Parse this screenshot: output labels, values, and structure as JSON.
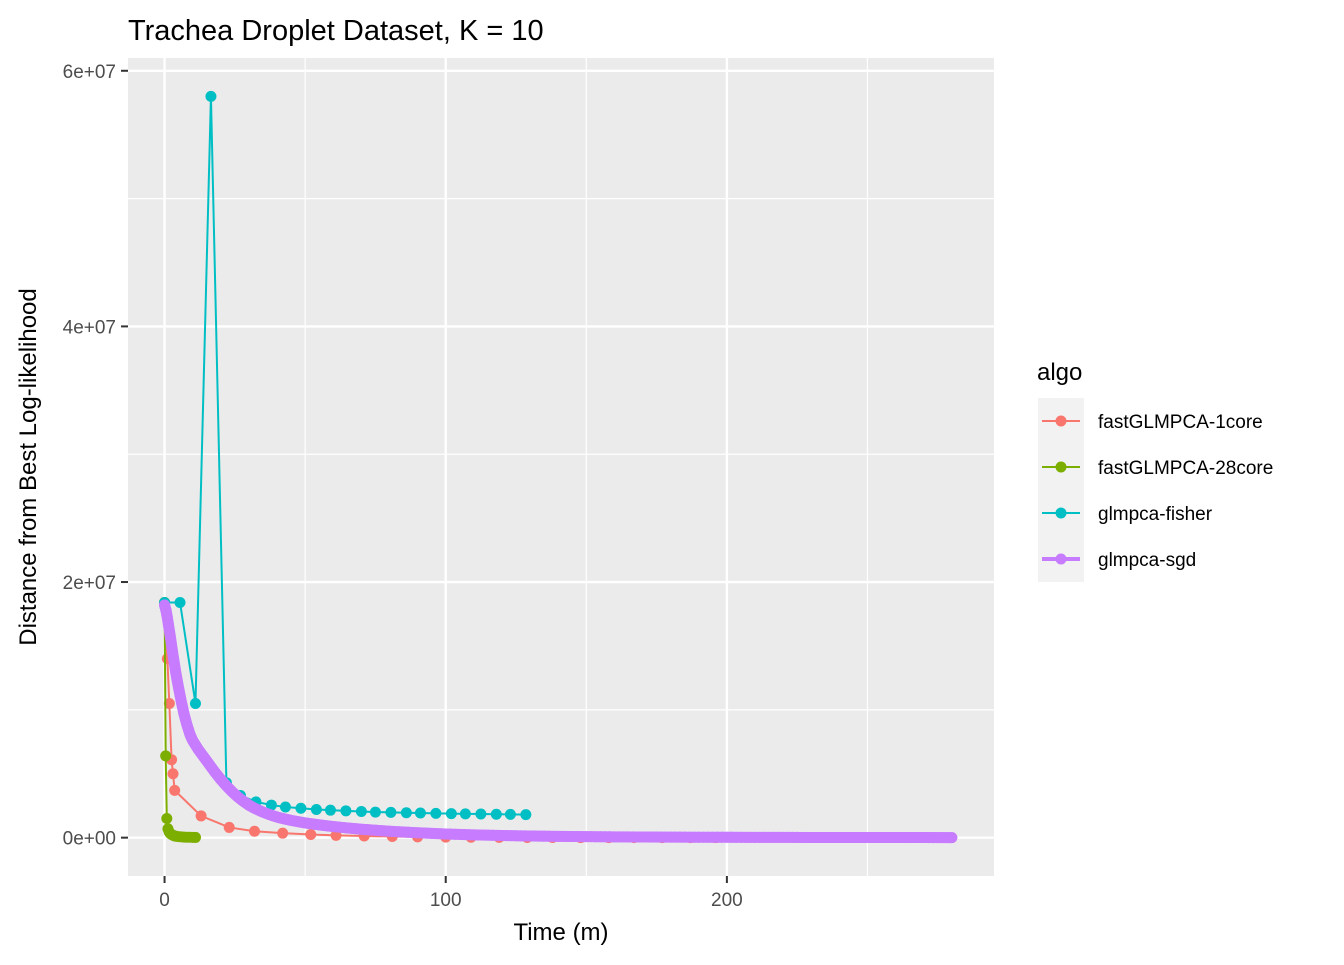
{
  "chart_data": {
    "type": "line",
    "title": "Trachea Droplet Dataset, K = 10",
    "xlabel": "Time (m)",
    "ylabel": "Distance from Best Log-likelihood",
    "xlim": [
      -13,
      295
    ],
    "ylim": [
      -3000000,
      61000000
    ],
    "x_ticks": [
      0,
      100,
      200
    ],
    "x_tick_labels": [
      "0",
      "100",
      "200"
    ],
    "y_ticks": [
      0,
      20000000,
      40000000,
      60000000
    ],
    "y_tick_labels": [
      "0e+00",
      "2e+07",
      "4e+07",
      "6e+07"
    ],
    "grid": true,
    "legend_title": "algo",
    "legend_position": "right",
    "series": [
      {
        "name": "fastGLMPCA-1core",
        "color": "#F8766D",
        "style": "line-points",
        "x": [
          0,
          1,
          1.7,
          2.5,
          3,
          3.6,
          13,
          23,
          32,
          42,
          52,
          61,
          71,
          81,
          90,
          100,
          109,
          119,
          129,
          138,
          148,
          158,
          167,
          177,
          187,
          196
        ],
        "y": [
          18400000,
          14000000,
          10500000,
          6100000,
          5000000,
          3700000,
          1700000,
          800000,
          500000,
          350000,
          250000,
          180000,
          130000,
          90000,
          60000,
          40000,
          30000,
          20000,
          15000,
          10000,
          8000,
          6000,
          4000,
          3000,
          2000,
          1000
        ]
      },
      {
        "name": "fastGLMPCA-28core",
        "color": "#7CAE00",
        "style": "line-points",
        "x": [
          0,
          0.4,
          0.8,
          1.2,
          1.6,
          2.0,
          2.5,
          3.0,
          3.5,
          4.0,
          5.0,
          6.0,
          7.0,
          8.0,
          9.0,
          10.0,
          11.0
        ],
        "y": [
          18400000,
          6400000,
          1500000,
          700000,
          450000,
          330000,
          250000,
          190000,
          140000,
          110000,
          80000,
          60000,
          45000,
          35000,
          28000,
          22000,
          18000
        ]
      },
      {
        "name": "glmpca-fisher",
        "color": "#00BFC4",
        "style": "line-points",
        "x": [
          0,
          5.5,
          11,
          16.5,
          22,
          27,
          32.5,
          38,
          43,
          48.5,
          54,
          59,
          64.5,
          70,
          75,
          80.5,
          86,
          91,
          96.5,
          102,
          107,
          112.5,
          118,
          123,
          128.5
        ],
        "y": [
          18400000,
          18400000,
          10500000,
          58000000,
          4300000,
          3300000,
          2800000,
          2550000,
          2400000,
          2300000,
          2200000,
          2150000,
          2100000,
          2050000,
          2000000,
          1980000,
          1950000,
          1930000,
          1900000,
          1880000,
          1860000,
          1850000,
          1830000,
          1820000,
          1800000
        ]
      },
      {
        "name": "glmpca-sgd",
        "color": "#C77CFF",
        "style": "thick-dense",
        "x": [
          0,
          0.5,
          1,
          2,
          3,
          4,
          5,
          6,
          7,
          8,
          9,
          10,
          12,
          14,
          16,
          18,
          20,
          22,
          24,
          26,
          28,
          30,
          32,
          35,
          38,
          41,
          45,
          50,
          55,
          60,
          65,
          70,
          75,
          80,
          90,
          100,
          110,
          120,
          130,
          140,
          150,
          160,
          170,
          180,
          190,
          200,
          210,
          220,
          230,
          240,
          250,
          260,
          270,
          280
        ],
        "y": [
          18200000,
          17800000,
          17200000,
          15800000,
          14300000,
          12900000,
          11700000,
          10600000,
          9600000,
          8800000,
          8100000,
          7600000,
          6900000,
          6300000,
          5700000,
          5100000,
          4550000,
          4050000,
          3600000,
          3200000,
          2850000,
          2550000,
          2300000,
          2000000,
          1750000,
          1550000,
          1350000,
          1150000,
          1000000,
          870000,
          760000,
          660000,
          580000,
          500000,
          380000,
          290000,
          220000,
          170000,
          130000,
          100000,
          80000,
          65000,
          52000,
          42000,
          34000,
          28000,
          23000,
          19000,
          16000,
          13000,
          11000,
          9000,
          7500,
          6000
        ]
      }
    ]
  }
}
